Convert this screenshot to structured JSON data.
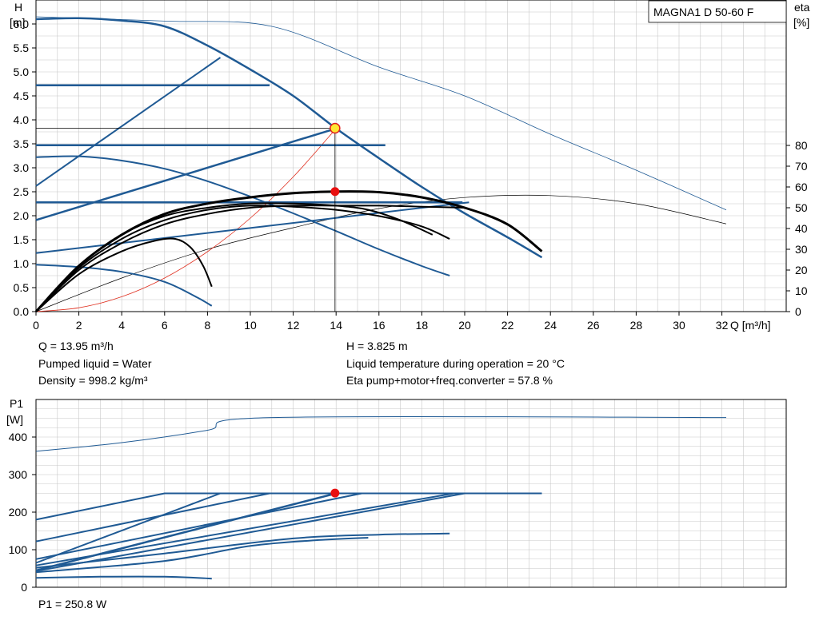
{
  "chart_data": [
    {
      "type": "line",
      "title": "MAGNA1 D 50-60 F",
      "y_label_left": "H",
      "y_unit_left": "[m]",
      "y_label_right": "eta",
      "y_unit_right": "[%]",
      "x_label": "Q [m³/h]",
      "xlim": [
        0,
        35
      ],
      "ylim": [
        0,
        6.5
      ],
      "eta_lim": [
        0,
        80
      ],
      "x_ticks": [
        "0",
        "2",
        "4",
        "6",
        "8",
        "10",
        "12",
        "14",
        "16",
        "18",
        "20",
        "22",
        "24",
        "26",
        "28",
        "30",
        "32"
      ],
      "y_ticks": [
        "0.0",
        "0.5",
        "1.0",
        "1.5",
        "2.0",
        "2.5",
        "3.0",
        "3.5",
        "4.0",
        "4.5",
        "5.0",
        "5.5",
        "6.0"
      ],
      "eta_ticks": [
        "0",
        "10",
        "20",
        "30",
        "40",
        "50",
        "60",
        "70",
        "80"
      ],
      "grid": true,
      "head_curves": [
        {
          "name": "max",
          "color": "#1f5a94",
          "width": 2.5,
          "points": [
            [
              0,
              6.1
            ],
            [
              2,
              6.12
            ],
            [
              4,
              6.07
            ],
            [
              6,
              5.95
            ],
            [
              8,
              5.55
            ],
            [
              10,
              5.05
            ],
            [
              12,
              4.5
            ],
            [
              14,
              3.82
            ],
            [
              16,
              3.2
            ],
            [
              18,
              2.6
            ],
            [
              20,
              2.05
            ],
            [
              22,
              1.55
            ],
            [
              23.6,
              1.13
            ]
          ]
        },
        {
          "name": "",
          "color": "#1f5a94",
          "width": 2.5,
          "points": [
            [
              0,
              4.72
            ],
            [
              10.9,
              4.72
            ]
          ]
        },
        {
          "name": "",
          "color": "#1f5a94",
          "width": 2.5,
          "points": [
            [
              0,
              3.47
            ],
            [
              16.3,
              3.47
            ]
          ]
        },
        {
          "name": "",
          "color": "#1f5a94",
          "width": 2.5,
          "points": [
            [
              0,
              2.28
            ],
            [
              19.9,
              2.28
            ]
          ]
        },
        {
          "name": "",
          "color": "#1f5a94",
          "width": 2.0,
          "points": [
            [
              0,
              2.62
            ],
            [
              8.6,
              5.3
            ]
          ]
        },
        {
          "name": "",
          "color": "#1f5a94",
          "width": 2.5,
          "points": [
            [
              0,
              1.91
            ],
            [
              14,
              3.82
            ]
          ]
        },
        {
          "name": "",
          "color": "#1f5a94",
          "width": 2.0,
          "points": [
            [
              0,
              1.22
            ],
            [
              20.2,
              2.28
            ]
          ]
        },
        {
          "name": "",
          "color": "#1f5a94",
          "width": 2.0,
          "points": [
            [
              0,
              3.22
            ],
            [
              2,
              3.24
            ],
            [
              4,
              3.15
            ],
            [
              6,
              2.98
            ],
            [
              8,
              2.72
            ],
            [
              10,
              2.4
            ],
            [
              12,
              2.05
            ],
            [
              14,
              1.68
            ],
            [
              16,
              1.3
            ],
            [
              18,
              0.95
            ],
            [
              19.3,
              0.75
            ]
          ]
        },
        {
          "name": "",
          "color": "#1f5a94",
          "width": 2.0,
          "points": [
            [
              0,
              0.98
            ],
            [
              2,
              0.93
            ],
            [
              4,
              0.83
            ],
            [
              6,
              0.62
            ],
            [
              7.5,
              0.3
            ],
            [
              8.2,
              0.12
            ]
          ]
        }
      ],
      "eta_curves": [
        {
          "name": "",
          "color": "#000000",
          "width": 3.0,
          "points": [
            [
              0,
              0
            ],
            [
              2,
              22
            ],
            [
              4,
              37
            ],
            [
              6,
              47
            ],
            [
              8,
              52
            ],
            [
              10,
              55
            ],
            [
              12,
              57
            ],
            [
              14,
              57.8
            ],
            [
              16,
              57.5
            ],
            [
              18,
              55
            ],
            [
              20,
              50
            ],
            [
              22,
              42
            ],
            [
              23.6,
              29
            ]
          ]
        },
        {
          "name": "",
          "color": "#000000",
          "width": 2.0,
          "points": [
            [
              0,
              0
            ],
            [
              2,
              21
            ],
            [
              4,
              35
            ],
            [
              6,
              44
            ],
            [
              8,
              49
            ],
            [
              10,
              51
            ],
            [
              12,
              50.5
            ],
            [
              14,
              49
            ],
            [
              16,
              46
            ],
            [
              18,
              41
            ],
            [
              19.3,
              35
            ]
          ]
        },
        {
          "name": "",
          "color": "#000000",
          "width": 2.0,
          "points": [
            [
              0,
              0
            ],
            [
              2,
              22
            ],
            [
              4,
              37
            ],
            [
              6,
              46
            ],
            [
              8,
              50
            ],
            [
              10,
              52
            ],
            [
              12,
              52
            ],
            [
              14,
              51
            ],
            [
              15.5,
              49
            ],
            [
              17,
              44
            ],
            [
              18.5,
              37
            ]
          ]
        },
        {
          "name": "",
          "color": "#000000",
          "width": 2.0,
          "points": [
            [
              0,
              0
            ],
            [
              2,
              20
            ],
            [
              4,
              33
            ],
            [
              6,
              42
            ],
            [
              8,
              47
            ],
            [
              10,
              50
            ],
            [
              12,
              51
            ],
            [
              14,
              51
            ],
            [
              16,
              51
            ],
            [
              18,
              50.5
            ],
            [
              20,
              50
            ]
          ]
        },
        {
          "name": "",
          "color": "#000000",
          "width": 2.0,
          "points": [
            [
              0,
              0
            ],
            [
              2,
              18
            ],
            [
              4,
              29
            ],
            [
              5.5,
              34
            ],
            [
              6.5,
              35
            ],
            [
              7.2,
              31
            ],
            [
              7.8,
              22
            ],
            [
              8.2,
              12
            ]
          ]
        }
      ],
      "thin_curves": [
        {
          "name": "",
          "color": "#1f5a94",
          "width": 0.8,
          "points": [
            [
              0,
              6.15
            ],
            [
              6,
              6.06
            ],
            [
              11,
              5.95
            ],
            [
              16,
              5.1
            ],
            [
              20,
              4.5
            ],
            [
              24,
              3.7
            ],
            [
              28,
              2.95
            ],
            [
              32.2,
              2.12
            ]
          ]
        },
        {
          "name": "",
          "color": "#000000",
          "width": 0.7,
          "points": [
            [
              0,
              0
            ],
            [
              4,
              0.7
            ],
            [
              8,
              1.3
            ],
            [
              12,
              1.75
            ],
            [
              16,
              2.15
            ],
            [
              20,
              2.38
            ],
            [
              24,
              2.42
            ],
            [
              28,
              2.25
            ],
            [
              32.2,
              1.83
            ]
          ]
        }
      ],
      "system_curve": {
        "color": "#e03020",
        "points": [
          [
            0,
            0
          ],
          [
            2,
            0.08
          ],
          [
            4,
            0.31
          ],
          [
            6,
            0.7
          ],
          [
            8,
            1.25
          ],
          [
            10,
            1.95
          ],
          [
            12,
            2.81
          ],
          [
            14,
            3.82
          ]
        ]
      },
      "duty_point": {
        "q": 13.95,
        "h": 3.825,
        "eta": 57.8
      }
    },
    {
      "type": "line",
      "y_label": "P1",
      "y_unit": "[W]",
      "xlim": [
        0,
        35
      ],
      "ylim": [
        0,
        500
      ],
      "y_ticks": [
        "0",
        "100",
        "200",
        "300",
        "400"
      ],
      "grid": true,
      "power_curves": [
        {
          "name": "max",
          "color": "#1f5a94",
          "width": 1.0,
          "points": [
            [
              0,
              362
            ],
            [
              4,
              385
            ],
            [
              8,
              418
            ],
            [
              11,
              452
            ],
            [
              32.2,
              452
            ]
          ]
        },
        {
          "name": "",
          "color": "#1f5a94",
          "width": 2.0,
          "points": [
            [
              0,
              180
            ],
            [
              6,
              250
            ],
            [
              23.6,
              250
            ]
          ]
        },
        {
          "name": "",
          "color": "#1f5a94",
          "width": 2.0,
          "points": [
            [
              0,
              122
            ],
            [
              10.9,
              250
            ]
          ]
        },
        {
          "name": "",
          "color": "#1f5a94",
          "width": 2.0,
          "points": [
            [
              0,
              65
            ],
            [
              8.6,
              250
            ]
          ]
        },
        {
          "name": "",
          "color": "#1f5a94",
          "width": 2.5,
          "points": [
            [
              0,
              45
            ],
            [
              14,
              250
            ]
          ]
        },
        {
          "name": "",
          "color": "#1f5a94",
          "width": 2.0,
          "points": [
            [
              0,
              75
            ],
            [
              15.2,
              250
            ]
          ]
        },
        {
          "name": "",
          "color": "#1f5a94",
          "width": 2.0,
          "points": [
            [
              0,
              58
            ],
            [
              19.5,
              250
            ]
          ]
        },
        {
          "name": "",
          "color": "#1f5a94",
          "width": 2.0,
          "points": [
            [
              0,
              43
            ],
            [
              20,
              250
            ]
          ]
        },
        {
          "name": "",
          "color": "#1f5a94",
          "width": 2.0,
          "points": [
            [
              0,
              52
            ],
            [
              6,
              90
            ],
            [
              12,
              130
            ],
            [
              16,
              140
            ],
            [
              19.3,
              143
            ]
          ]
        },
        {
          "name": "",
          "color": "#1f5a94",
          "width": 2.0,
          "points": [
            [
              0,
              40
            ],
            [
              6,
              70
            ],
            [
              10,
              110
            ],
            [
              13,
              125
            ],
            [
              15.5,
              132
            ]
          ]
        },
        {
          "name": "",
          "color": "#1f5a94",
          "width": 2.0,
          "points": [
            [
              0,
              25
            ],
            [
              3,
              28
            ],
            [
              6,
              28
            ],
            [
              8.2,
              23
            ]
          ]
        }
      ],
      "duty_point": {
        "q": 13.95,
        "p1": 250.8
      }
    }
  ],
  "info": {
    "q": "Q = 13.95 m³/h",
    "pumped_liquid": "Pumped liquid = Water",
    "density": "Density = 998.2 kg/m³",
    "h": "H = 3.825 m",
    "liquid_temp": "Liquid temperature during operation = 20 °C",
    "eta": "Eta pump+motor+freq.converter = 57.8 %",
    "p1": "P1 = 250.8 W"
  }
}
